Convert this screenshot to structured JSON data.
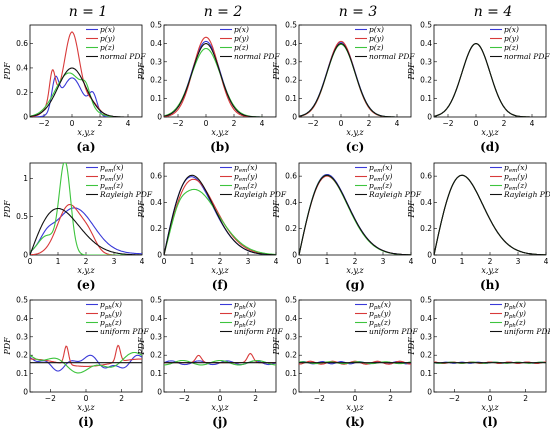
{
  "column_titles": [
    "n = 1",
    "n = 2",
    "n = 3",
    "n = 4"
  ],
  "colors": {
    "x": "#3a3ad8",
    "y": "#d83a3a",
    "z": "#3ec43e",
    "ref": "#111111"
  },
  "chart_data": [
    {
      "type": "line",
      "panel": "(a)",
      "row": 0,
      "col": 0,
      "dist": "normal",
      "variant": "n1",
      "xlim": [
        -3,
        5
      ],
      "ylim": [
        0,
        0.75
      ],
      "xticks": [
        -2,
        0,
        2,
        4
      ],
      "yticks": [
        0,
        0.2,
        0.4,
        0.6
      ],
      "xtick_labels": [
        "−2",
        "0",
        "2",
        "4"
      ],
      "ytick_labels": [
        "0",
        "0.2",
        "0.4",
        "0.6"
      ],
      "xlabel": "x,y,z",
      "ylabel": "PDF",
      "legend": [
        "p(x)",
        "p(y)",
        "p(z)",
        "normal PDF"
      ]
    },
    {
      "type": "line",
      "panel": "(b)",
      "row": 0,
      "col": 1,
      "dist": "normal",
      "variant": "n2",
      "xlim": [
        -3,
        5
      ],
      "ylim": [
        0,
        0.5
      ],
      "xticks": [
        -2,
        0,
        2,
        4
      ],
      "yticks": [
        0,
        0.1,
        0.2,
        0.3,
        0.4,
        0.5
      ],
      "xtick_labels": [
        "−2",
        "0",
        "2",
        "4"
      ],
      "ytick_labels": [
        "0",
        "0.1",
        "0.2",
        "0.3",
        "0.4",
        "0.5"
      ],
      "xlabel": "x,y,z",
      "ylabel": "PDF",
      "legend": [
        "p(x)",
        "p(y)",
        "p(z)",
        "normal PDF"
      ]
    },
    {
      "type": "line",
      "panel": "(c)",
      "row": 0,
      "col": 2,
      "dist": "normal",
      "variant": "n3",
      "xlim": [
        -3,
        5
      ],
      "ylim": [
        0,
        0.5
      ],
      "xticks": [
        -2,
        0,
        2,
        4
      ],
      "yticks": [
        0,
        0.1,
        0.2,
        0.3,
        0.4,
        0.5
      ],
      "xtick_labels": [
        "−2",
        "0",
        "2",
        "4"
      ],
      "ytick_labels": [
        "0",
        "0.1",
        "0.2",
        "0.3",
        "0.4",
        "0.5"
      ],
      "xlabel": "x,y,z",
      "ylabel": "PDF",
      "legend": [
        "p(x)",
        "p(y)",
        "p(z)",
        "normal PDF"
      ]
    },
    {
      "type": "line",
      "panel": "(d)",
      "row": 0,
      "col": 3,
      "dist": "normal",
      "variant": "n4",
      "xlim": [
        -3,
        5
      ],
      "ylim": [
        0,
        0.5
      ],
      "xticks": [
        -2,
        0,
        2,
        4
      ],
      "yticks": [
        0,
        0.1,
        0.2,
        0.3,
        0.4,
        0.5
      ],
      "xtick_labels": [
        "−2",
        "0",
        "2",
        "4"
      ],
      "ytick_labels": [
        "0",
        "0.1",
        "0.2",
        "0.3",
        "0.4",
        "0.5"
      ],
      "xlabel": "x,y,z",
      "ylabel": "PDF",
      "legend": [
        "p(x)",
        "p(y)",
        "p(z)",
        "normal PDF"
      ]
    },
    {
      "type": "line",
      "panel": "(e)",
      "row": 1,
      "col": 0,
      "dist": "rayleigh",
      "variant": "n1",
      "xlim": [
        0,
        4
      ],
      "ylim": [
        0,
        1.2
      ],
      "xticks": [
        0,
        1,
        2,
        3,
        4
      ],
      "yticks": [
        0,
        0.5,
        1
      ],
      "xtick_labels": [
        "0",
        "1",
        "2",
        "3",
        "4"
      ],
      "ytick_labels": [
        "0",
        "0.5",
        "1"
      ],
      "xlabel": "x,y,z",
      "ylabel": "PDF",
      "legend": [
        "p_em(x)",
        "p_em(y)",
        "p_em(z)",
        "Rayleigh PDF"
      ]
    },
    {
      "type": "line",
      "panel": "(f)",
      "row": 1,
      "col": 1,
      "dist": "rayleigh",
      "variant": "n2",
      "xlim": [
        0,
        4
      ],
      "ylim": [
        0,
        0.7
      ],
      "xticks": [
        0,
        1,
        2,
        3,
        4
      ],
      "yticks": [
        0,
        0.2,
        0.4,
        0.6
      ],
      "xtick_labels": [
        "0",
        "1",
        "2",
        "3",
        "4"
      ],
      "ytick_labels": [
        "0",
        "0.2",
        "0.4",
        "0.6"
      ],
      "xlabel": "x,y,z",
      "ylabel": "PDF",
      "legend": [
        "p_em(x)",
        "p_em(y)",
        "p_em(z)",
        "Rayleigh PDF"
      ]
    },
    {
      "type": "line",
      "panel": "(g)",
      "row": 1,
      "col": 2,
      "dist": "rayleigh",
      "variant": "n3",
      "xlim": [
        0,
        4
      ],
      "ylim": [
        0,
        0.7
      ],
      "xticks": [
        0,
        1,
        2,
        3,
        4
      ],
      "yticks": [
        0,
        0.2,
        0.4,
        0.6
      ],
      "xtick_labels": [
        "0",
        "1",
        "2",
        "3",
        "4"
      ],
      "ytick_labels": [
        "0",
        "0.2",
        "0.4",
        "0.6"
      ],
      "xlabel": "x,y,z",
      "ylabel": "PDF",
      "legend": [
        "p_em(x)",
        "p_em(y)",
        "p_em(z)",
        "Rayleigh PDF"
      ]
    },
    {
      "type": "line",
      "panel": "(h)",
      "row": 1,
      "col": 3,
      "dist": "rayleigh",
      "variant": "n4",
      "xlim": [
        0,
        4
      ],
      "ylim": [
        0,
        0.7
      ],
      "xticks": [
        0,
        1,
        2,
        3,
        4
      ],
      "yticks": [
        0,
        0.2,
        0.4,
        0.6
      ],
      "xtick_labels": [
        "0",
        "1",
        "2",
        "3",
        "4"
      ],
      "ytick_labels": [
        "0",
        "0.2",
        "0.4",
        "0.6"
      ],
      "xlabel": "x,y,z",
      "ylabel": "PDF",
      "legend": [
        "p_em(x)",
        "p_em(y)",
        "p_em(z)",
        "Rayleigh PDF"
      ]
    },
    {
      "type": "line",
      "panel": "(i)",
      "row": 2,
      "col": 0,
      "dist": "uniform",
      "variant": "n1",
      "xlim": [
        -3.14,
        3.14
      ],
      "ylim": [
        0,
        0.5
      ],
      "xticks": [
        -2,
        0,
        2
      ],
      "yticks": [
        0,
        0.1,
        0.2,
        0.3,
        0.4,
        0.5
      ],
      "xtick_labels": [
        "−2",
        "0",
        "2"
      ],
      "ytick_labels": [
        "0",
        "0.1",
        "0.2",
        "0.3",
        "0.4",
        "0.5"
      ],
      "xlabel": "x,y,z",
      "ylabel": "PDF",
      "legend": [
        "p_ph(x)",
        "p_ph(y)",
        "p_ph(z)",
        "uniform PDF"
      ]
    },
    {
      "type": "line",
      "panel": "(j)",
      "row": 2,
      "col": 1,
      "dist": "uniform",
      "variant": "n2",
      "xlim": [
        -3.14,
        3.14
      ],
      "ylim": [
        0,
        0.5
      ],
      "xticks": [
        -2,
        0,
        2
      ],
      "yticks": [
        0,
        0.1,
        0.2,
        0.3,
        0.4,
        0.5
      ],
      "xtick_labels": [
        "−2",
        "0",
        "2"
      ],
      "ytick_labels": [
        "0",
        "0.1",
        "0.2",
        "0.3",
        "0.4",
        "0.5"
      ],
      "xlabel": "x,y,z",
      "ylabel": "PDF",
      "legend": [
        "p_ph(x)",
        "p_ph(y)",
        "p_ph(z)",
        "uniform PDF"
      ]
    },
    {
      "type": "line",
      "panel": "(k)",
      "row": 2,
      "col": 2,
      "dist": "uniform",
      "variant": "n3",
      "xlim": [
        -3.14,
        3.14
      ],
      "ylim": [
        0,
        0.5
      ],
      "xticks": [
        -2,
        0,
        2
      ],
      "yticks": [
        0,
        0.1,
        0.2,
        0.3,
        0.4,
        0.5
      ],
      "xtick_labels": [
        "−2",
        "0",
        "2"
      ],
      "ytick_labels": [
        "0",
        "0.1",
        "0.2",
        "0.3",
        "0.4",
        "0.5"
      ],
      "xlabel": "x,y,z",
      "ylabel": "PDF",
      "legend": [
        "p_ph(x)",
        "p_ph(y)",
        "p_ph(z)",
        "uniform PDF"
      ]
    },
    {
      "type": "line",
      "panel": "(l)",
      "row": 2,
      "col": 3,
      "dist": "uniform",
      "variant": "n4",
      "xlim": [
        -3.14,
        3.14
      ],
      "ylim": [
        0,
        0.5
      ],
      "xticks": [
        -2,
        0,
        2
      ],
      "yticks": [
        0,
        0.1,
        0.2,
        0.3,
        0.4,
        0.5
      ],
      "xtick_labels": [
        "−2",
        "0",
        "2"
      ],
      "ytick_labels": [
        "0",
        "0.1",
        "0.2",
        "0.3",
        "0.4",
        "0.5"
      ],
      "xlabel": "x,y,z",
      "ylabel": "PDF",
      "legend": [
        "p_ph(x)",
        "p_ph(y)",
        "p_ph(z)",
        "uniform PDF"
      ]
    }
  ]
}
